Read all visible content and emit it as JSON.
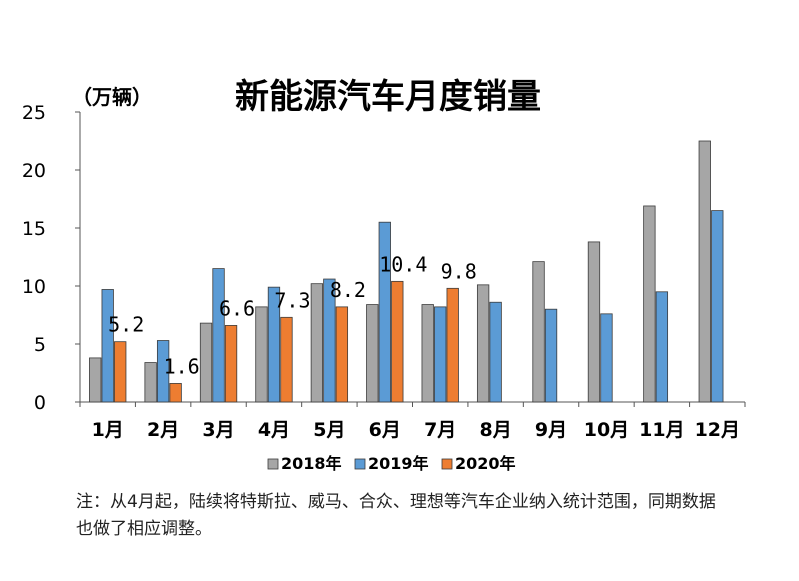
{
  "chart_data": {
    "type": "bar",
    "title": "新能源汽车月度销量",
    "unit_label": "（万辆）",
    "categories": [
      "1月",
      "2月",
      "3月",
      "4月",
      "5月",
      "6月",
      "7月",
      "8月",
      "9月",
      "10月",
      "11月",
      "12月"
    ],
    "series": [
      {
        "name": "2018年",
        "color": "#a6a6a6",
        "values": [
          3.8,
          3.4,
          6.8,
          8.2,
          10.2,
          8.4,
          8.4,
          10.1,
          12.1,
          13.8,
          16.9,
          22.5
        ]
      },
      {
        "name": "2019年",
        "color": "#5b9bd5",
        "values": [
          9.7,
          5.3,
          11.5,
          9.9,
          10.6,
          15.5,
          8.2,
          8.6,
          8.0,
          7.6,
          9.5,
          16.5
        ]
      },
      {
        "name": "2020年",
        "color": "#ed7d31",
        "values": [
          5.2,
          1.6,
          6.6,
          7.3,
          8.2,
          10.4,
          9.8,
          null,
          null,
          null,
          null,
          null
        ]
      }
    ],
    "data_labels": [
      {
        "series": "2020年",
        "index": 0,
        "text": "5.2"
      },
      {
        "series": "2020年",
        "index": 1,
        "text": "1.6"
      },
      {
        "series": "2020年",
        "index": 2,
        "text": "6.6"
      },
      {
        "series": "2020年",
        "index": 3,
        "text": "7.3"
      },
      {
        "series": "2020年",
        "index": 4,
        "text": "8.2"
      },
      {
        "series": "2020年",
        "index": 5,
        "text": "10.4"
      },
      {
        "series": "2020年",
        "index": 6,
        "text": "9.8"
      }
    ],
    "ylim": [
      0,
      25
    ],
    "yticks": [
      0,
      5,
      10,
      15,
      20,
      25
    ],
    "xlabel": "",
    "ylabel": "",
    "grid": false,
    "legend_position": "bottom"
  },
  "note": "注：从4月起，陆续将特斯拉、威马、合众、理想等汽车企业纳入统计范围，同期数据也做了相应调整。"
}
